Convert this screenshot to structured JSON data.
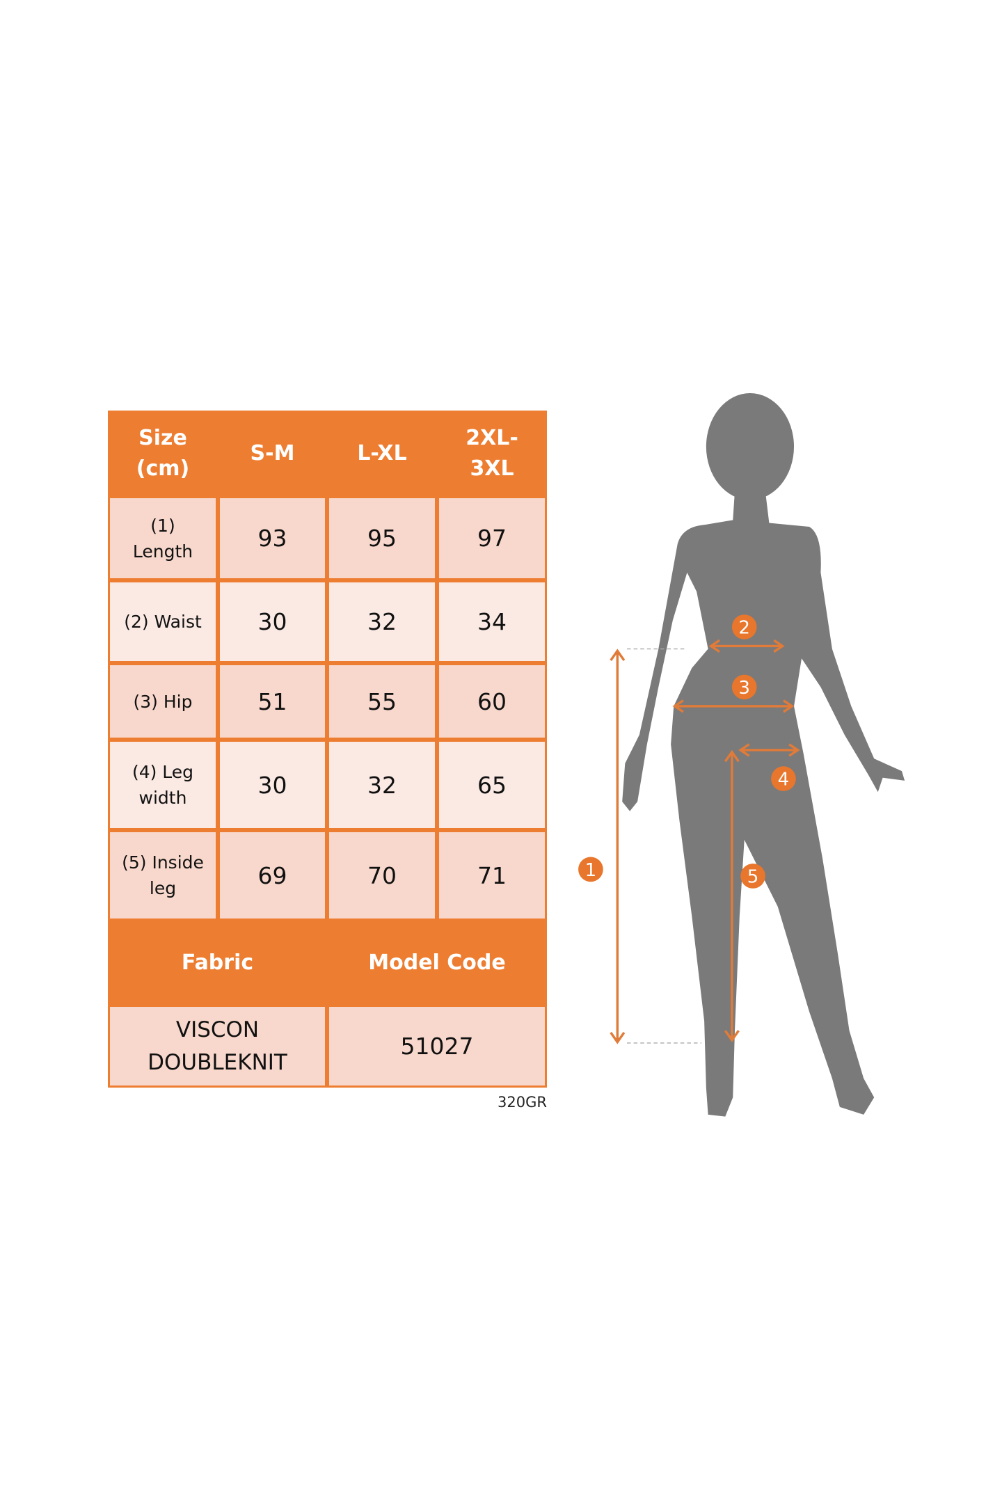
{
  "colors": {
    "accent": "#ED7D31",
    "cell": "#F8D8CC",
    "cell_light": "#FBEAE4",
    "silhouette": "#7A7A7A"
  },
  "table": {
    "header": [
      "Size (cm)",
      "S-M",
      "L-XL",
      "2XL-3XL"
    ],
    "rows": [
      {
        "label": "(1) Length",
        "values": [
          "93",
          "95",
          "97"
        ]
      },
      {
        "label": "(2) Waist",
        "values": [
          "30",
          "32",
          "34"
        ]
      },
      {
        "label": "(3) Hip",
        "values": [
          "51",
          "55",
          "60"
        ]
      },
      {
        "label": "(4) Leg width",
        "values": [
          "30",
          "32",
          "65"
        ]
      },
      {
        "label": "(5) Inside leg",
        "values": [
          "69",
          "70",
          "71"
        ]
      }
    ],
    "fabric_label": "Fabric",
    "model_code_label": "Model Code",
    "fabric_value": "VISCON DOUBLEKNIT",
    "model_code_value": "51027"
  },
  "product_code": "320GR",
  "figure": {
    "markers": [
      "1",
      "2",
      "3",
      "4",
      "5"
    ]
  }
}
